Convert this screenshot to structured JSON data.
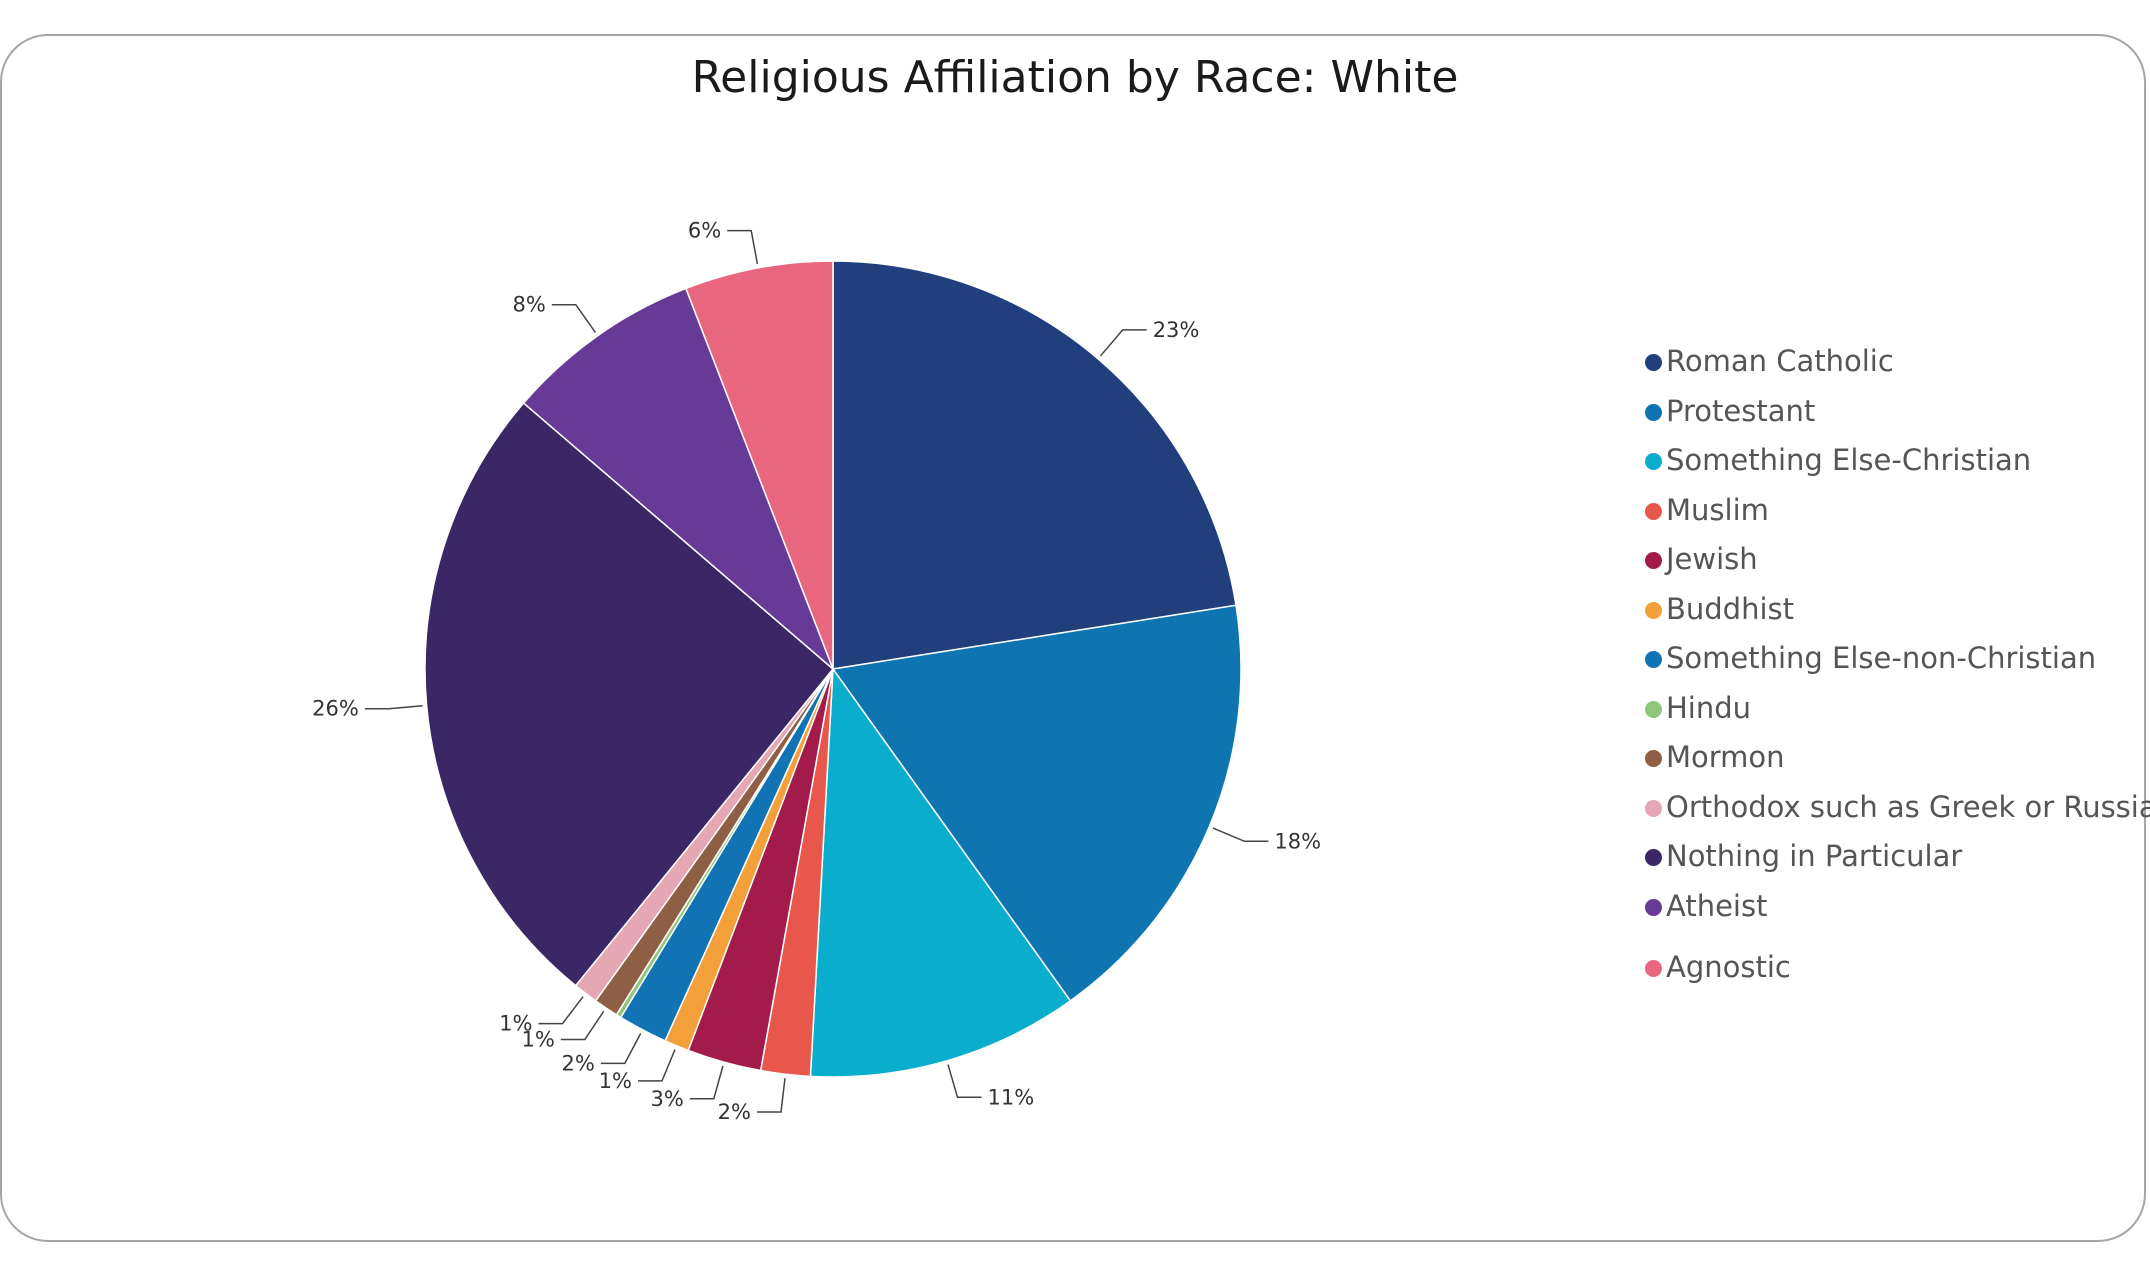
{
  "chart_data": {
    "type": "pie",
    "title": "Religious Affiliation by Race: White",
    "legend_position": "right",
    "slices": [
      {
        "name": "Roman Catholic",
        "value": 23,
        "label": "23%",
        "color": "#203f7c"
      },
      {
        "name": "Protestant",
        "value": 18,
        "label": "18%",
        "color": "#0e75b0"
      },
      {
        "name": "Something Else-Christian",
        "value": 11,
        "label": "11%",
        "color": "#0badcc"
      },
      {
        "name": "Muslim",
        "value": 2,
        "label": "2%",
        "color": "#e8574b"
      },
      {
        "name": "Jewish",
        "value": 3,
        "label": "3%",
        "color": "#a21b4b"
      },
      {
        "name": "Buddhist",
        "value": 1,
        "label": "1%",
        "color": "#f3a03a"
      },
      {
        "name": "Something Else-non-Christian",
        "value": 2,
        "label": "2%",
        "color": "#1173b3"
      },
      {
        "name": "Hindu",
        "value": 0.2,
        "label": "",
        "color": "#8ec77b"
      },
      {
        "name": "Mormon",
        "value": 1,
        "label": "1%",
        "color": "#8f5f45"
      },
      {
        "name": "Orthodox such as Greek or Russian",
        "value": 1,
        "label": "1%",
        "color": "#e4a7b3"
      },
      {
        "name": "Nothing in Particular",
        "value": 26,
        "label": "26%",
        "color": "#3b2666"
      },
      {
        "name": "Atheist",
        "value": 8,
        "label": "8%",
        "color": "#663a96"
      },
      {
        "name": "Agnostic",
        "value": 6,
        "label": "6%",
        "color": "#e8667e"
      }
    ]
  }
}
